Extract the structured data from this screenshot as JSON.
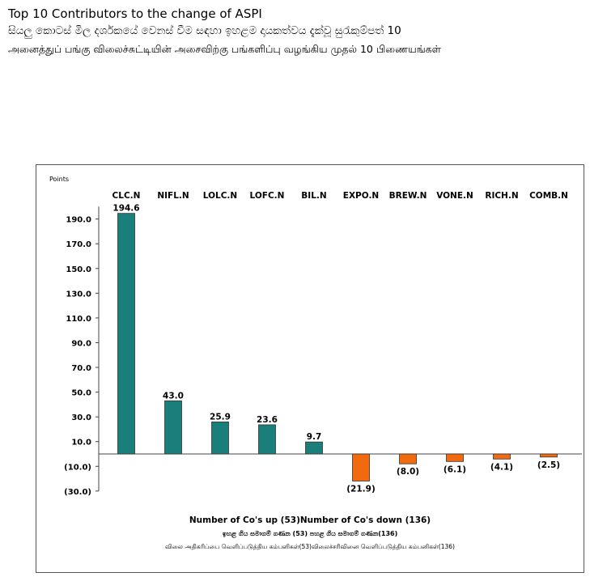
{
  "page": {
    "title_en": "Top 10 Contributors to the change of ASPI",
    "title_si": "සියලු කොටස් මිල දර්ශකයේ වෙනස් වීම සඳහා ඉහළම දායකත්වය දැක්වූ සුරැකුම්පත් 10",
    "title_ta": "அனைத்துப் பங்கு விலைச்சுட்டியின் அசைவிற்கு பங்களிப்பு வழங்கிய முதல் 10 பிணையங்கள்"
  },
  "chart_data": {
    "type": "bar",
    "ylabel": "Points",
    "categories": [
      "CLC.N",
      "NIFL.N",
      "LOLC.N",
      "LOFC.N",
      "BIL.N",
      "EXPO.N",
      "BREW.N",
      "VONE.N",
      "RICH.N",
      "COMB.N"
    ],
    "values": [
      194.6,
      43.0,
      25.9,
      23.6,
      9.7,
      -21.9,
      -8.0,
      -6.1,
      -4.1,
      -2.5
    ],
    "value_labels": [
      "194.6",
      "43.0",
      "25.9",
      "23.6",
      "9.7",
      "(21.9)",
      "(8.0)",
      "(6.1)",
      "(4.1)",
      "(2.5)"
    ],
    "yticks": [
      190,
      170,
      150,
      130,
      110,
      90,
      70,
      50,
      30,
      10,
      -10,
      -30
    ],
    "ytick_labels": [
      "190.0",
      "170.0",
      "150.0",
      "130.0",
      "110.0",
      "90.0",
      "70.0",
      "50.0",
      "30.0",
      "10.0",
      "(10.0)",
      "(30.0)"
    ],
    "ylim": [
      -30,
      200
    ],
    "colors": {
      "positive": "#1a7f7a",
      "negative": "#f26a10"
    },
    "footer": {
      "line1": "Number of Co's up (53)Number of Co's down  (136)",
      "line2": "ඉහළ ගිය සමාගම් ගණන (53) පහළ ගිය සමාගම් ගණන(136)",
      "line3": "விலை அதிகரிப்பை வெளிப்படுத்திய கம்பனிகள்(53)விலைச்சரிவினை வெளிப்படுத்திய கம்பனிகள்(136)"
    }
  }
}
